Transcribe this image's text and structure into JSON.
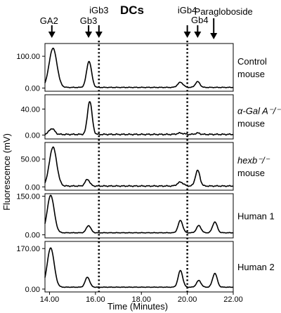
{
  "chart_data": {
    "type": "line",
    "title": "DCs",
    "xlabel": "Time (Minutes)",
    "ylabel": "Fluorescence (mV)",
    "xlim": [
      13.8,
      22.0
    ],
    "x_ticks": [
      "14.00",
      "16.00",
      "18.00",
      "20.00",
      "22.00"
    ],
    "x_tick_values": [
      14,
      16,
      18,
      20,
      22
    ],
    "markers": [
      {
        "label": "GA2",
        "x": 14.1
      },
      {
        "label": "Gb3",
        "x": 15.7
      },
      {
        "label": "iGb3",
        "x": 16.15
      },
      {
        "label": "iGb4",
        "x": 20.0
      },
      {
        "label": "Gb4",
        "x": 20.45
      },
      {
        "label": "Paragloboside",
        "x": 21.15
      }
    ],
    "guide_lines_x": [
      16.15,
      20.0
    ],
    "panels": [
      {
        "name_lines": [
          "Control",
          "mouse"
        ],
        "italic": false,
        "ylim": [
          -10,
          140
        ],
        "y_ticks": [
          "100.00",
          "0.00"
        ],
        "y_tick_values": [
          100,
          0
        ],
        "peaks": [
          {
            "x": 14.15,
            "height": 123,
            "width": 0.17
          },
          {
            "x": 15.72,
            "height": 82,
            "width": 0.11
          },
          {
            "x": 19.7,
            "height": 16,
            "width": 0.12
          },
          {
            "x": 20.45,
            "height": 18,
            "width": 0.1
          }
        ],
        "baseline": 2
      },
      {
        "name_lines": [
          "α-Gal A⁻/⁻",
          "mouse"
        ],
        "italic": true,
        "ylim": [
          -6,
          62
        ],
        "y_ticks": [
          "40.00",
          "0.00"
        ],
        "y_tick_values": [
          40,
          0
        ],
        "peaks": [
          {
            "x": 14.1,
            "height": 9,
            "width": 0.12
          },
          {
            "x": 15.75,
            "height": 51,
            "width": 0.1
          },
          {
            "x": 19.7,
            "height": 2,
            "width": 0.14
          },
          {
            "x": 20.45,
            "height": 2,
            "width": 0.1
          }
        ],
        "baseline": 1
      },
      {
        "name_lines": [
          "hexb⁻/⁻",
          "mouse"
        ],
        "italic": true,
        "ylim": [
          -6,
          80
        ],
        "y_ticks": [
          "50.00",
          "0.00"
        ],
        "y_tick_values": [
          50,
          0
        ],
        "peaks": [
          {
            "x": 14.15,
            "height": 70,
            "width": 0.16
          },
          {
            "x": 15.65,
            "height": 12,
            "width": 0.1
          },
          {
            "x": 19.7,
            "height": 7,
            "width": 0.13
          },
          {
            "x": 20.45,
            "height": 28,
            "width": 0.1
          }
        ],
        "baseline": 1.5
      },
      {
        "name_lines": [
          "Human 1"
        ],
        "italic": false,
        "ylim": [
          -12,
          160
        ],
        "y_ticks": [
          "150.00",
          "0.00"
        ],
        "y_tick_values": [
          150,
          0
        ],
        "peaks": [
          {
            "x": 14.05,
            "height": 146,
            "width": 0.15
          },
          {
            "x": 15.7,
            "height": 28,
            "width": 0.1
          },
          {
            "x": 19.7,
            "height": 48,
            "width": 0.1
          },
          {
            "x": 20.5,
            "height": 28,
            "width": 0.1
          },
          {
            "x": 21.2,
            "height": 42,
            "width": 0.1
          }
        ],
        "baseline": 8
      },
      {
        "name_lines": [
          "Human 2"
        ],
        "italic": false,
        "ylim": [
          -12,
          200
        ],
        "y_ticks": [
          "170.00",
          "0.00"
        ],
        "y_tick_values": [
          170,
          0
        ],
        "peaks": [
          {
            "x": 14.05,
            "height": 165,
            "width": 0.15
          },
          {
            "x": 15.65,
            "height": 42,
            "width": 0.1
          },
          {
            "x": 19.7,
            "height": 70,
            "width": 0.1
          },
          {
            "x": 20.5,
            "height": 28,
            "width": 0.1
          },
          {
            "x": 21.2,
            "height": 58,
            "width": 0.1
          }
        ],
        "baseline": 8
      }
    ]
  }
}
